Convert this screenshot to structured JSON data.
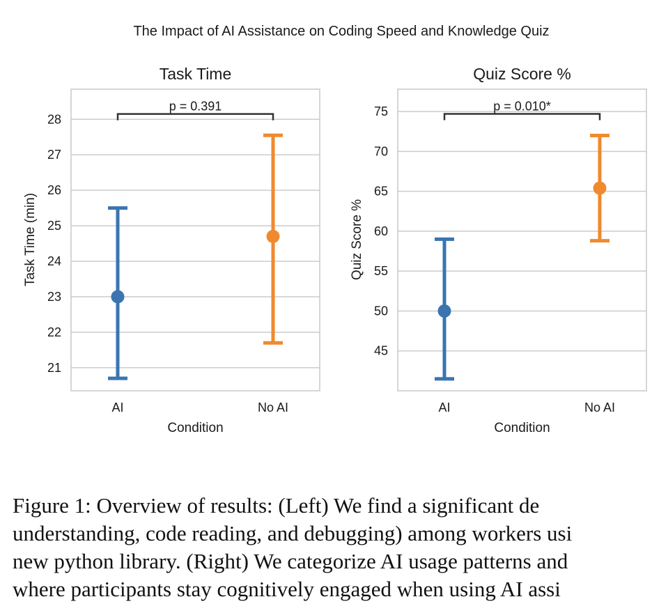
{
  "figure_title": "The Impact of AI Assistance on Coding Speed and Knowledge Quiz",
  "colors": {
    "ai": "#3a75b0",
    "no_ai": "#ef8a2f",
    "grid": "#cccccc",
    "frame": "#c8c8c8",
    "bracket": "#333333"
  },
  "chart_data": [
    {
      "type": "pointplot",
      "title": "Task Time",
      "xlabel": "Condition",
      "ylabel": "Task Time (min)",
      "categories": [
        "AI",
        "No AI"
      ],
      "ylim": [
        20.35,
        28.85
      ],
      "yticks": [
        21,
        22,
        23,
        24,
        25,
        26,
        27,
        28
      ],
      "points": [
        {
          "category": "AI",
          "mean": 23.0,
          "lower": 20.7,
          "upper": 25.5,
          "color": "#3a75b0"
        },
        {
          "category": "No AI",
          "mean": 24.7,
          "lower": 21.7,
          "upper": 27.55,
          "color": "#ef8a2f"
        }
      ],
      "annotation": {
        "text": "p = 0.391",
        "level": 28.15
      },
      "grid": true
    },
    {
      "type": "pointplot",
      "title": "Quiz Score %",
      "xlabel": "Condition",
      "ylabel": "Quiz Score %",
      "categories": [
        "AI",
        "No AI"
      ],
      "ylim": [
        40.0,
        77.8
      ],
      "yticks": [
        45,
        50,
        55,
        60,
        65,
        70,
        75
      ],
      "points": [
        {
          "category": "AI",
          "mean": 50.0,
          "lower": 41.5,
          "upper": 59.0,
          "color": "#3a75b0"
        },
        {
          "category": "No AI",
          "mean": 65.4,
          "lower": 58.8,
          "upper": 72.0,
          "color": "#ef8a2f"
        }
      ],
      "annotation": {
        "text": "p = 0.010*",
        "level": 74.7
      },
      "grid": true
    }
  ],
  "caption": {
    "lines": [
      "Figure 1:  Overview of results:  (Left) We find a significant de",
      "understanding, code reading, and debugging) among workers usi",
      "new python library.  (Right) We categorize AI usage patterns and",
      "where participants stay cognitively engaged when using AI assi"
    ]
  }
}
